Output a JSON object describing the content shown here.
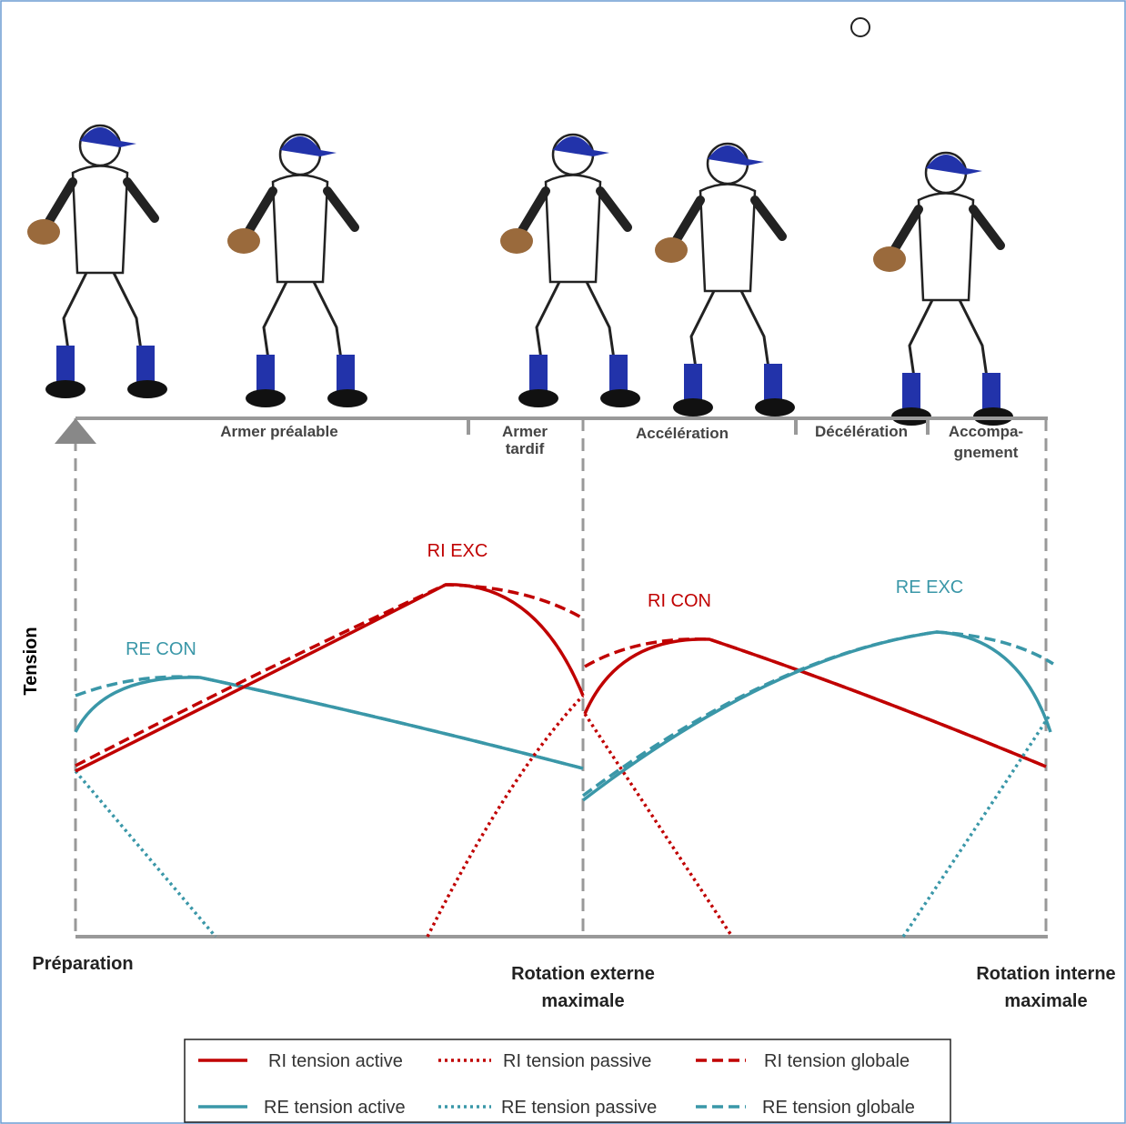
{
  "phases": [
    [
      "Armer préalable"
    ],
    [
      "Armer",
      "tardif"
    ],
    [
      "Accélération"
    ],
    [
      "Décélération"
    ],
    [
      "Accompa-",
      "gnement"
    ]
  ],
  "y_label": "Tension",
  "curve_labels": {
    "ri_exc": "RI EXC",
    "re_con": "RE CON",
    "ri_con": "RI CON",
    "re_exc": "RE EXC"
  },
  "events": [
    [
      "Préparation"
    ],
    [
      "Rotation externe",
      "maximale"
    ],
    [
      "Rotation interne",
      "maximale"
    ]
  ],
  "legend": [
    [
      "RI tension active",
      "RI tension passive",
      "RI tension globale"
    ],
    [
      "RE tension active",
      "RE tension passive",
      "RE tension globale"
    ]
  ]
}
